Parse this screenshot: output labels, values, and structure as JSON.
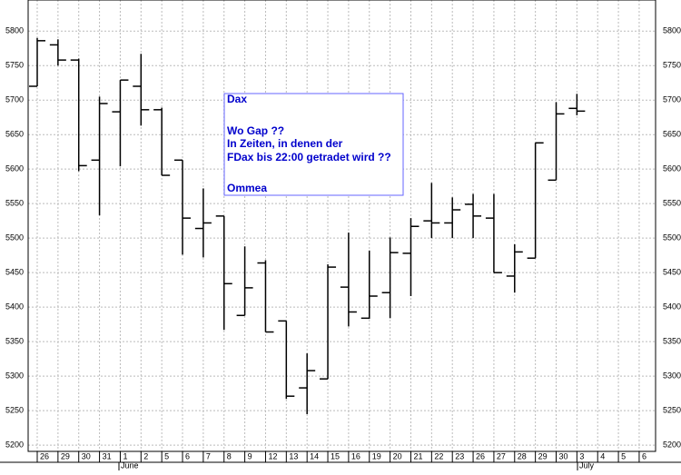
{
  "chart_data": {
    "type": "ohlc",
    "categories": [
      "26",
      "29",
      "30",
      "31",
      "1",
      "2",
      "5",
      "6",
      "7",
      "8",
      "9",
      "12",
      "13",
      "14",
      "15",
      "16",
      "19",
      "20",
      "21",
      "22",
      "23",
      "26",
      "27",
      "28",
      "29",
      "30",
      "3",
      "4",
      "5",
      "6"
    ],
    "months": [
      "June",
      "July"
    ],
    "open": [
      5720,
      5780,
      5758,
      5613,
      5683,
      5720,
      5686,
      5613,
      5514,
      5532,
      5388,
      5464,
      5380,
      5283,
      5296,
      5429,
      5384,
      5421,
      5478,
      5525,
      5522,
      5549,
      5529,
      5445,
      5471,
      5584,
      5688,
      null,
      null,
      null
    ],
    "high": [
      5790,
      5788,
      5760,
      5705,
      5729,
      5767,
      5689,
      5613,
      5572,
      5532,
      5488,
      5468,
      5380,
      5333,
      5462,
      5508,
      5482,
      5501,
      5529,
      5580,
      5559,
      5564,
      5564,
      5491,
      5638,
      5697,
      5709,
      null,
      null,
      null
    ],
    "low": [
      5720,
      5750,
      5597,
      5533,
      5604,
      5663,
      5591,
      5476,
      5472,
      5367,
      5388,
      5364,
      5267,
      5245,
      5296,
      5372,
      5383,
      5384,
      5416,
      5500,
      5500,
      5500,
      5450,
      5421,
      5471,
      5584,
      5678,
      null,
      null,
      null
    ],
    "close": [
      5786,
      5758,
      5605,
      5695,
      5729,
      5686,
      5591,
      5529,
      5522,
      5434,
      5428,
      5364,
      5271,
      5308,
      5458,
      5393,
      5416,
      5479,
      5517,
      5522,
      5541,
      5532,
      5450,
      5480,
      5638,
      5680,
      5684,
      null,
      null,
      null
    ],
    "color": "#000000",
    "ylim": [
      5191,
      5845
    ],
    "yticks": [
      5200,
      5250,
      5300,
      5350,
      5400,
      5450,
      5500,
      5550,
      5600,
      5650,
      5700,
      5750,
      5800
    ],
    "grid": true,
    "annotation": [
      "Dax",
      "Wo Gap ??",
      "In Zeiten, in denen der",
      "FDax bis 22:00 getradet wird ??",
      "Ommea"
    ]
  }
}
